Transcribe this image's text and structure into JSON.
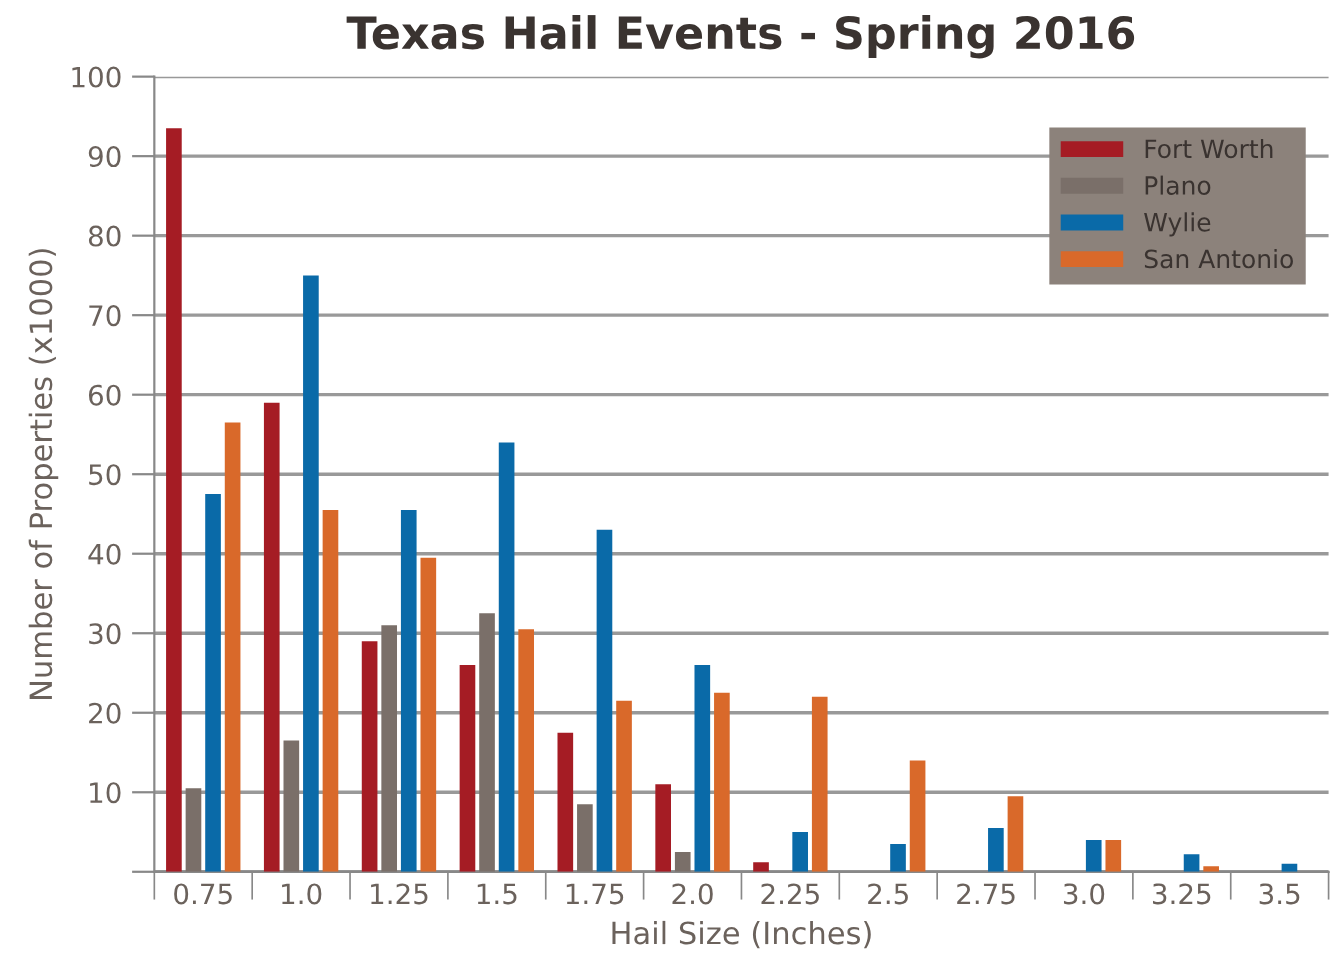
{
  "chart_data": {
    "type": "bar",
    "title": "Texas Hail Events - Spring 2016",
    "xlabel": "Hail Size (Inches)",
    "ylabel": "Number of Properties (x1000)",
    "categories": [
      "0.75",
      "1.0",
      "1.25",
      "1.5",
      "1.75",
      "2.0",
      "2.25",
      "2.5",
      "2.75",
      "3.0",
      "3.25",
      "3.5"
    ],
    "series": [
      {
        "name": "Fort Worth",
        "color": "#a51c24",
        "values": [
          93.5,
          59,
          29,
          26,
          17.5,
          11,
          1.2,
          null,
          null,
          null,
          null,
          null
        ]
      },
      {
        "name": "Plano",
        "color": "#7a6f69",
        "values": [
          10.5,
          16.5,
          31,
          32.5,
          8.5,
          2.5,
          null,
          null,
          null,
          null,
          null,
          null
        ]
      },
      {
        "name": "Wylie",
        "color": "#0a6aa8",
        "values": [
          47.5,
          75,
          45.5,
          54,
          43,
          26,
          5,
          3.5,
          5.5,
          4,
          2.2,
          1
        ]
      },
      {
        "name": "San Antonio",
        "color": "#d9692a",
        "values": [
          56.5,
          45.5,
          39.5,
          30.5,
          21.5,
          22.5,
          22,
          14,
          9.5,
          4,
          0.7,
          null
        ]
      }
    ],
    "ylim": [
      0,
      100
    ],
    "yticks": [
      {
        "value": 0,
        "label": null
      },
      10,
      20,
      30,
      40,
      50,
      60,
      70,
      80,
      90,
      100
    ],
    "grid": "y",
    "legend": "top right"
  }
}
